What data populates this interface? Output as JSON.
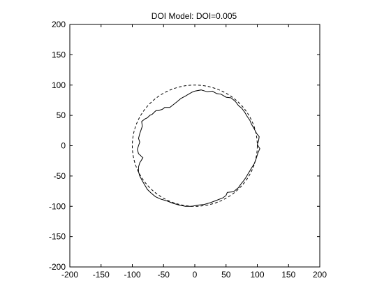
{
  "chart_data": {
    "type": "line",
    "title": "DOI Model:    DOI=0.005",
    "xlabel": "",
    "ylabel": "",
    "xlim": [
      -200,
      200
    ],
    "ylim": [
      -200,
      200
    ],
    "x_ticks": [
      -200,
      -150,
      -100,
      -50,
      0,
      50,
      100,
      150,
      200
    ],
    "y_ticks": [
      200,
      150,
      100,
      50,
      0,
      -50,
      -100,
      -150,
      -200
    ],
    "grid": false,
    "legend": "none",
    "series": [
      {
        "style": "dashed",
        "color": "#000000",
        "shape": "circle",
        "center": [
          0,
          0
        ],
        "radius": 100
      },
      {
        "style": "solid",
        "color": "#000000",
        "points": [
          [
            0,
            90
          ],
          [
            10,
            92
          ],
          [
            20,
            89
          ],
          [
            28,
            90
          ],
          [
            35,
            86
          ],
          [
            42,
            85
          ],
          [
            50,
            80
          ],
          [
            58,
            79
          ],
          [
            65,
            73
          ],
          [
            70,
            66
          ],
          [
            75,
            62
          ],
          [
            80,
            55
          ],
          [
            84,
            48
          ],
          [
            88,
            42
          ],
          [
            91,
            35
          ],
          [
            95,
            28
          ],
          [
            99,
            20
          ],
          [
            103,
            15
          ],
          [
            102,
            8
          ],
          [
            100,
            2
          ],
          [
            104,
            -5
          ],
          [
            101,
            -12
          ],
          [
            98,
            -22
          ],
          [
            95,
            -30
          ],
          [
            90,
            -38
          ],
          [
            86,
            -45
          ],
          [
            82,
            -52
          ],
          [
            78,
            -58
          ],
          [
            74,
            -63
          ],
          [
            70,
            -69
          ],
          [
            62,
            -76
          ],
          [
            52,
            -77
          ],
          [
            50,
            -82
          ],
          [
            45,
            -86
          ],
          [
            35,
            -90
          ],
          [
            25,
            -94
          ],
          [
            15,
            -97
          ],
          [
            5,
            -98
          ],
          [
            -5,
            -100
          ],
          [
            -15,
            -100
          ],
          [
            -25,
            -98
          ],
          [
            -35,
            -95
          ],
          [
            -45,
            -91
          ],
          [
            -55,
            -88
          ],
          [
            -63,
            -84
          ],
          [
            -70,
            -78
          ],
          [
            -76,
            -72
          ],
          [
            -80,
            -65
          ],
          [
            -84,
            -58
          ],
          [
            -88,
            -50
          ],
          [
            -90,
            -43
          ],
          [
            -90,
            -35
          ],
          [
            -88,
            -28
          ],
          [
            -83,
            -20
          ],
          [
            -90,
            -13
          ],
          [
            -92,
            -6
          ],
          [
            -90,
            0
          ],
          [
            -88,
            6
          ],
          [
            -90,
            12
          ],
          [
            -88,
            20
          ],
          [
            -86,
            26
          ],
          [
            -84,
            32
          ],
          [
            -85,
            40
          ],
          [
            -80,
            44
          ],
          [
            -76,
            46
          ],
          [
            -72,
            50
          ],
          [
            -68,
            52
          ],
          [
            -64,
            56
          ],
          [
            -62,
            58
          ],
          [
            -58,
            58
          ],
          [
            -52,
            60
          ],
          [
            -48,
            63
          ],
          [
            -40,
            63
          ],
          [
            -34,
            68
          ],
          [
            -29,
            72
          ],
          [
            -22,
            78
          ],
          [
            -15,
            82
          ],
          [
            -10,
            85
          ],
          [
            -5,
            88
          ],
          [
            0,
            90
          ]
        ]
      }
    ]
  }
}
